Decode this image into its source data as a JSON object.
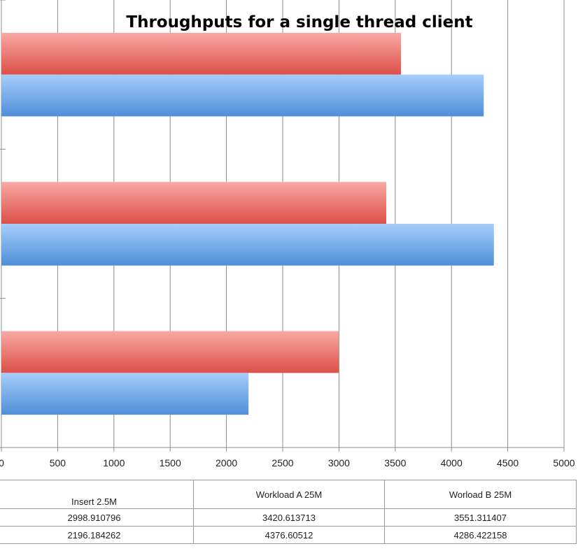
{
  "chart_data": {
    "type": "bar",
    "orientation": "horizontal",
    "title": "Throughputs for a single thread client",
    "categories": [
      "Insert 2.5M",
      "Workload A 25M",
      "Worload B 25M"
    ],
    "series": [
      {
        "values": [
          2998.910796,
          3420.613713,
          3551.311407
        ],
        "color": "#e8605a"
      },
      {
        "values": [
          2196.184262,
          4376.60512,
          4286.422158
        ],
        "color": "#5a9ae0"
      }
    ],
    "xlim": [
      0,
      5000
    ],
    "xticks": [
      "0",
      "500",
      "1000",
      "1500",
      "2000",
      "2500",
      "3000",
      "3500",
      "4000",
      "4500",
      "5000"
    ],
    "grid": true,
    "legend": "none",
    "table": {
      "rows": [
        [
          "2998.910796",
          "3420.613713",
          "3551.311407"
        ],
        [
          "2196.184262",
          "4376.60512",
          "4286.422158"
        ]
      ]
    }
  }
}
